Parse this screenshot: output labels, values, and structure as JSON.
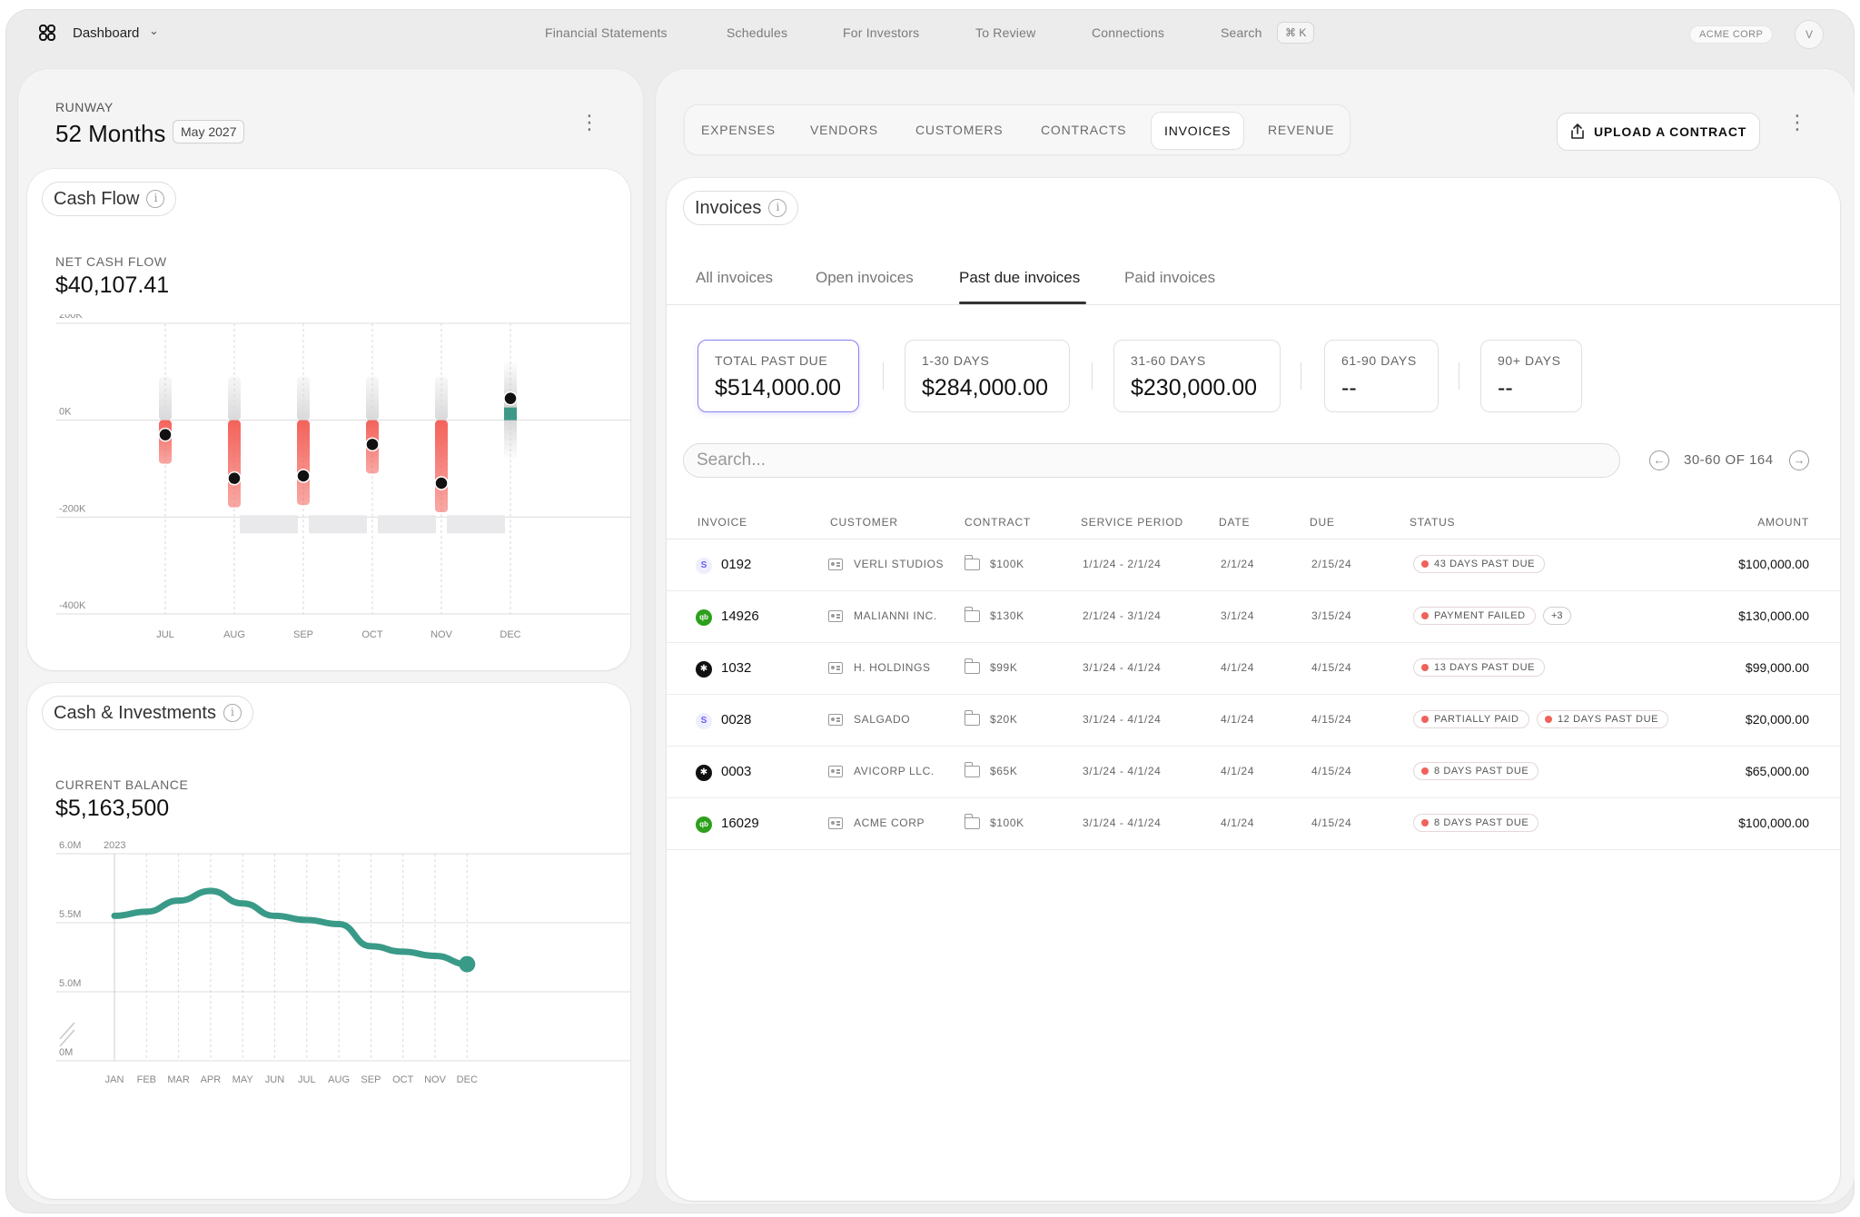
{
  "topbar": {
    "logo_icon": "brand-logo-icon",
    "dashboard_label": "Dashboard",
    "nav": [
      "Financial Statements",
      "Schedules",
      "For Investors",
      "To Review",
      "Connections",
      "Search"
    ],
    "search_shortcut": "⌘ K",
    "org": "ACME CORP",
    "avatar": "V"
  },
  "runway": {
    "label": "RUNWAY",
    "value": "52 Months",
    "date": "May 2027"
  },
  "cash_flow": {
    "title": "Cash Flow",
    "kpi_label": "NET CASH FLOW",
    "kpi_value": "$40,107.41"
  },
  "cash_investments": {
    "title": "Cash & Investments",
    "kpi_label": "CURRENT BALANCE",
    "kpi_value": "$5,163,500"
  },
  "tabs": [
    "EXPENSES",
    "VENDORS",
    "CUSTOMERS",
    "CONTRACTS",
    "INVOICES",
    "REVENUE"
  ],
  "active_tab": "INVOICES",
  "upload_label": "UPLOAD A CONTRACT",
  "invoices": {
    "title": "Invoices",
    "subtabs": [
      "All invoices",
      "Open invoices",
      "Past due invoices",
      "Paid invoices"
    ],
    "active_subtab": "Past due invoices",
    "summary": [
      {
        "label": "TOTAL PAST DUE",
        "value": "$514,000.00"
      },
      {
        "label": "1-30 DAYS",
        "value": "$284,000.00"
      },
      {
        "label": "31-60 DAYS",
        "value": "$230,000.00"
      },
      {
        "label": "61-90 DAYS",
        "value": "--"
      },
      {
        "label": "90+ DAYS",
        "value": "--"
      }
    ],
    "search_placeholder": "Search...",
    "pager": "30-60 OF 164",
    "columns": [
      "INVOICE",
      "CUSTOMER",
      "CONTRACT",
      "SERVICE PERIOD",
      "DATE",
      "DUE",
      "STATUS",
      "AMOUNT"
    ],
    "rows": [
      {
        "source": "stripe",
        "source_glyph": "S",
        "invoice": "0192",
        "customer": "VERLI STUDIOS",
        "contract": "$100K",
        "period": "1/1/24 - 2/1/24",
        "date": "2/1/24",
        "due": "2/15/24",
        "badges": [
          "43 DAYS PAST DUE"
        ],
        "extra": "",
        "amount": "$100,000.00"
      },
      {
        "source": "quickbooks",
        "source_glyph": "qb",
        "invoice": "14926",
        "customer": "MALIANNI INC.",
        "contract": "$130K",
        "period": "2/1/24 - 3/1/24",
        "date": "3/1/24",
        "due": "3/15/24",
        "badges": [
          "PAYMENT FAILED"
        ],
        "extra": "+3",
        "amount": "$130,000.00"
      },
      {
        "source": "xero",
        "source_glyph": "✱",
        "invoice": "1032",
        "customer": "H. HOLDINGS",
        "contract": "$99K",
        "period": "3/1/24 - 4/1/24",
        "date": "4/1/24",
        "due": "4/15/24",
        "badges": [
          "13 DAYS PAST DUE"
        ],
        "extra": "",
        "amount": "$99,000.00"
      },
      {
        "source": "stripe",
        "source_glyph": "S",
        "invoice": "0028",
        "customer": "SALGADO",
        "contract": "$20K",
        "period": "3/1/24 - 4/1/24",
        "date": "4/1/24",
        "due": "4/15/24",
        "badges": [
          "PARTIALLY PAID",
          "12 DAYS PAST DUE"
        ],
        "extra": "",
        "amount": "$20,000.00"
      },
      {
        "source": "xero",
        "source_glyph": "✱",
        "invoice": "0003",
        "customer": "AVICORP LLC.",
        "contract": "$65K",
        "period": "3/1/24 - 4/1/24",
        "date": "4/1/24",
        "due": "4/15/24",
        "badges": [
          "8 DAYS PAST DUE"
        ],
        "extra": "",
        "amount": "$65,000.00"
      },
      {
        "source": "quickbooks",
        "source_glyph": "qb",
        "invoice": "16029",
        "customer": "ACME CORP",
        "contract": "$100K",
        "period": "3/1/24 - 4/1/24",
        "date": "4/1/24",
        "due": "4/15/24",
        "badges": [
          "8 DAYS PAST DUE"
        ],
        "extra": "",
        "amount": "$100,000.00"
      }
    ]
  },
  "chart_data": [
    {
      "type": "bar",
      "y_tick_labels": [
        "200K",
        "0K",
        "-200K",
        "-400K"
      ],
      "ylim": [
        -400000,
        200000
      ],
      "categories": [
        "JUL",
        "AUG",
        "SEP",
        "OCT",
        "NOV",
        "DEC"
      ],
      "series": [
        {
          "values": [
            -30000,
            -120000,
            -115000,
            -50000,
            -130000,
            45000
          ]
        }
      ],
      "colors": {
        "negative": "#f3625a",
        "positive": "#3e9a88",
        "marker": "#111111"
      }
    },
    {
      "type": "line",
      "y_tick_labels": [
        "6.0M",
        "5.5M",
        "5.0M",
        "0M"
      ],
      "year_label": "2023",
      "categories": [
        "JAN",
        "FEB",
        "MAR",
        "APR",
        "MAY",
        "JUN",
        "JUL",
        "AUG",
        "SEP",
        "OCT",
        "NOV",
        "DEC"
      ],
      "series": [
        {
          "values": [
            5.55,
            5.58,
            5.66,
            5.73,
            5.64,
            5.55,
            5.52,
            5.49,
            5.33,
            5.29,
            5.26,
            5.2
          ]
        }
      ],
      "color": "#3a9a88"
    }
  ]
}
